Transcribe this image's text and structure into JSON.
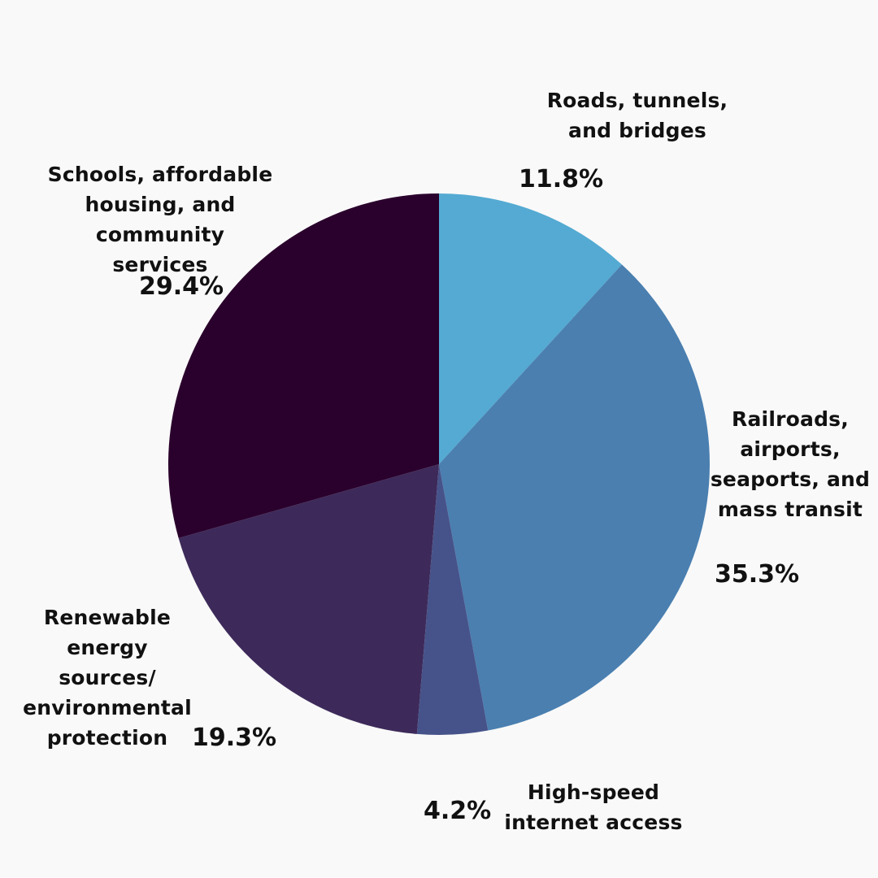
{
  "chart_data": {
    "type": "pie",
    "title": "",
    "start_angle_deg": 0,
    "direction": "clockwise",
    "slices": [
      {
        "label": "Roads, tunnels,\nand bridges",
        "value": 11.8,
        "value_label": "11.8%",
        "color": "#54aad2"
      },
      {
        "label": "Railroads,\nairports,\nseaports, and\nmass transit",
        "value": 35.3,
        "value_label": "35.3%",
        "color": "#4a7fb0"
      },
      {
        "label": "High-speed\ninternet access",
        "value": 4.2,
        "value_label": "4.2%",
        "color": "#46538a"
      },
      {
        "label": "Renewable energy\nsources/\nenvironmental\nprotection",
        "value": 19.3,
        "value_label": "19.3%",
        "color": "#3d2a5a"
      },
      {
        "label": "Schools, affordable\nhousing, and community\nservices",
        "value": 29.4,
        "value_label": "29.4%",
        "color": "#2a002c"
      }
    ]
  },
  "colors": {
    "background": "#f9f9f9",
    "text": "#111111"
  }
}
